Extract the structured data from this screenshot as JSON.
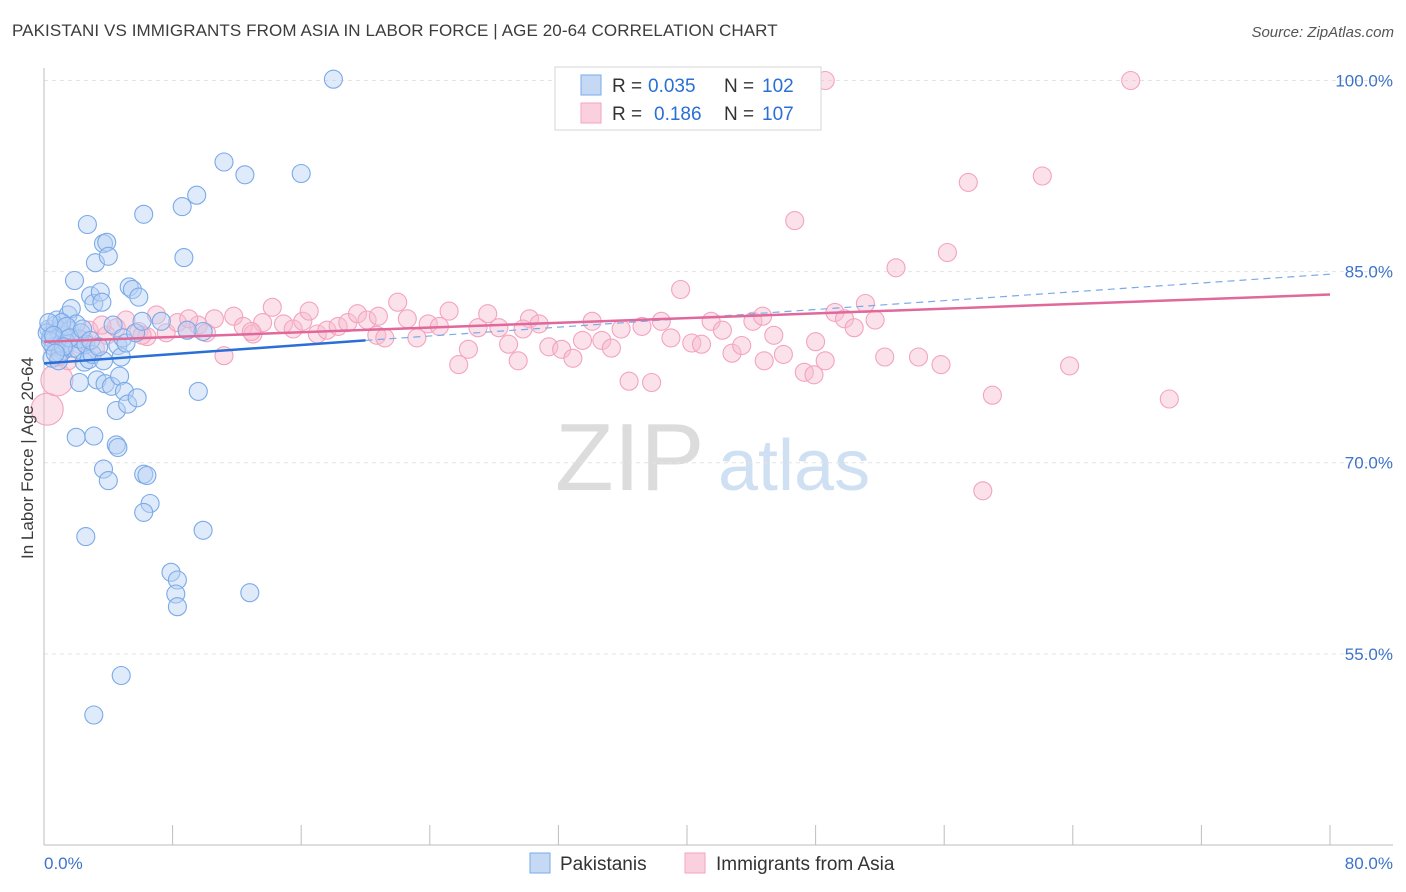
{
  "title": "PAKISTANI VS IMMIGRANTS FROM ASIA IN LABOR FORCE | AGE 20-64 CORRELATION CHART",
  "source": "Source: ZipAtlas.com",
  "watermark": {
    "zip": "ZIP",
    "atlas": "atlas"
  },
  "legend_top": {
    "rows": [
      {
        "r_label": "R =",
        "r_value": "0.035",
        "n_label": "N =",
        "n_value": "102"
      },
      {
        "r_label": "R =",
        "r_value": "0.186",
        "n_label": "N =",
        "n_value": "107"
      }
    ]
  },
  "chart_data": {
    "type": "scatter",
    "ylabel": "In Labor Force | Age 20-64",
    "xlim": [
      0,
      80
    ],
    "ylim": [
      40,
      102
    ],
    "x_tick_labels": [
      "0.0%",
      "80.0%"
    ],
    "y_ticks": [
      55,
      70,
      85,
      100
    ],
    "y_tick_labels": [
      "55.0%",
      "70.0%",
      "85.0%",
      "100.0%"
    ],
    "grid": true,
    "legend_position": "bottom-center",
    "series": [
      {
        "name": "Pakistanis",
        "color": "#7aaae8",
        "line_color": "#2a6fd6",
        "trend": {
          "x0": 0,
          "y0": 77.8,
          "x1": 20,
          "y1": 79.6,
          "dash_x1": 80,
          "dash_y1": 84.8
        },
        "points": [
          [
            0.3,
            80.5
          ],
          [
            0.4,
            79.8
          ],
          [
            0.5,
            80.1
          ],
          [
            0.6,
            79.6
          ],
          [
            0.7,
            80.8
          ],
          [
            0.8,
            79.2
          ],
          [
            0.9,
            80.3
          ],
          [
            1.0,
            79.9
          ],
          [
            1.1,
            80.6
          ],
          [
            1.2,
            78.8
          ],
          [
            0.5,
            78.2
          ],
          [
            0.6,
            79.1
          ],
          [
            0.8,
            81.2
          ],
          [
            1.0,
            78.6
          ],
          [
            1.3,
            80.0
          ],
          [
            1.4,
            79.4
          ],
          [
            1.5,
            81.6
          ],
          [
            1.6,
            80.4
          ],
          [
            1.7,
            82.1
          ],
          [
            1.8,
            79.0
          ],
          [
            2.0,
            80.9
          ],
          [
            2.1,
            78.9
          ],
          [
            2.2,
            79.7
          ],
          [
            2.3,
            80.2
          ],
          [
            2.5,
            77.9
          ],
          [
            2.6,
            79.3
          ],
          [
            2.8,
            78.1
          ],
          [
            3.0,
            78.5
          ],
          [
            0.4,
            79.5
          ],
          [
            0.9,
            78.0
          ],
          [
            1.9,
            84.3
          ],
          [
            2.7,
            88.7
          ],
          [
            2.9,
            83.1
          ],
          [
            3.1,
            82.5
          ],
          [
            3.2,
            85.7
          ],
          [
            3.5,
            83.4
          ],
          [
            3.6,
            82.6
          ],
          [
            3.7,
            87.2
          ],
          [
            3.9,
            87.3
          ],
          [
            4.0,
            86.2
          ],
          [
            4.3,
            80.8
          ],
          [
            4.6,
            79.2
          ],
          [
            4.8,
            78.3
          ],
          [
            4.9,
            79.8
          ],
          [
            5.1,
            79.4
          ],
          [
            5.3,
            83.8
          ],
          [
            5.5,
            83.6
          ],
          [
            5.7,
            80.2
          ],
          [
            5.9,
            83.0
          ],
          [
            6.1,
            81.1
          ],
          [
            3.3,
            76.5
          ],
          [
            3.8,
            76.2
          ],
          [
            4.2,
            76.0
          ],
          [
            4.5,
            74.1
          ],
          [
            4.7,
            76.8
          ],
          [
            5.0,
            75.6
          ],
          [
            5.2,
            74.6
          ],
          [
            5.8,
            75.1
          ],
          [
            2.2,
            76.3
          ],
          [
            3.7,
            78.0
          ],
          [
            2.0,
            72.0
          ],
          [
            3.1,
            72.1
          ],
          [
            3.7,
            69.5
          ],
          [
            4.0,
            68.6
          ],
          [
            4.5,
            71.4
          ],
          [
            4.6,
            71.2
          ],
          [
            6.2,
            69.1
          ],
          [
            6.4,
            69.0
          ],
          [
            6.6,
            66.8
          ],
          [
            6.2,
            66.1
          ],
          [
            2.6,
            64.2
          ],
          [
            7.9,
            61.4
          ],
          [
            8.3,
            60.8
          ],
          [
            8.2,
            59.7
          ],
          [
            8.3,
            58.7
          ],
          [
            9.9,
            64.7
          ],
          [
            12.8,
            59.8
          ],
          [
            3.1,
            50.2
          ],
          [
            4.8,
            53.3
          ],
          [
            6.2,
            89.5
          ],
          [
            8.6,
            90.1
          ],
          [
            8.7,
            86.1
          ],
          [
            9.5,
            91.0
          ],
          [
            11.2,
            93.6
          ],
          [
            12.5,
            92.6
          ],
          [
            16.0,
            92.7
          ],
          [
            18.0,
            100.1
          ],
          [
            9.6,
            75.6
          ],
          [
            7.3,
            81.1
          ],
          [
            9.9,
            80.3
          ],
          [
            8.9,
            80.4
          ],
          [
            1.1,
            81.0
          ],
          [
            1.4,
            80.7
          ],
          [
            0.2,
            80.2
          ],
          [
            0.3,
            81.0
          ],
          [
            0.6,
            80.0
          ],
          [
            1.6,
            79.8
          ],
          [
            2.4,
            80.5
          ],
          [
            2.9,
            79.6
          ],
          [
            3.4,
            79.1
          ],
          [
            1.2,
            79.1
          ],
          [
            0.7,
            78.6
          ]
        ]
      },
      {
        "name": "Immigrants from Asia",
        "color": "#f4a3bf",
        "line_color": "#e0689a",
        "trend": {
          "x0": 0,
          "y0": 79.5,
          "x1": 80,
          "y1": 83.2
        },
        "points": [
          [
            0.2,
            74.2
          ],
          [
            0.8,
            76.5
          ],
          [
            1.5,
            78.0
          ],
          [
            2.2,
            79.3
          ],
          [
            2.8,
            80.4
          ],
          [
            3.2,
            79.0
          ],
          [
            3.9,
            80.0
          ],
          [
            4.5,
            80.6
          ],
          [
            5.1,
            81.2
          ],
          [
            5.9,
            80.3
          ],
          [
            6.4,
            79.9
          ],
          [
            7.0,
            81.6
          ],
          [
            7.6,
            80.2
          ],
          [
            8.3,
            81.0
          ],
          [
            8.9,
            80.4
          ],
          [
            9.6,
            80.8
          ],
          [
            10.1,
            80.2
          ],
          [
            10.6,
            81.3
          ],
          [
            11.2,
            78.4
          ],
          [
            11.8,
            81.5
          ],
          [
            12.4,
            80.7
          ],
          [
            13.0,
            80.1
          ],
          [
            13.6,
            81.0
          ],
          [
            14.2,
            82.2
          ],
          [
            14.9,
            80.9
          ],
          [
            15.5,
            80.5
          ],
          [
            16.1,
            81.1
          ],
          [
            16.5,
            81.9
          ],
          [
            17.0,
            80.1
          ],
          [
            17.6,
            80.4
          ],
          [
            18.3,
            80.7
          ],
          [
            18.9,
            81.0
          ],
          [
            19.5,
            81.7
          ],
          [
            20.1,
            81.2
          ],
          [
            20.7,
            80.0
          ],
          [
            21.2,
            79.8
          ],
          [
            22.0,
            82.6
          ],
          [
            22.6,
            81.3
          ],
          [
            23.2,
            79.8
          ],
          [
            23.9,
            80.9
          ],
          [
            24.6,
            80.7
          ],
          [
            25.2,
            81.9
          ],
          [
            25.8,
            77.7
          ],
          [
            26.4,
            78.9
          ],
          [
            27.0,
            80.6
          ],
          [
            27.6,
            81.7
          ],
          [
            28.3,
            80.6
          ],
          [
            28.9,
            79.3
          ],
          [
            29.5,
            78.0
          ],
          [
            30.2,
            81.3
          ],
          [
            30.8,
            80.9
          ],
          [
            31.4,
            79.1
          ],
          [
            32.2,
            78.9
          ],
          [
            32.9,
            78.2
          ],
          [
            33.5,
            79.6
          ],
          [
            34.1,
            81.1
          ],
          [
            34.7,
            79.6
          ],
          [
            35.3,
            79.0
          ],
          [
            35.9,
            80.5
          ],
          [
            36.4,
            76.4
          ],
          [
            37.2,
            80.7
          ],
          [
            37.8,
            76.3
          ],
          [
            38.4,
            81.1
          ],
          [
            39.0,
            79.8
          ],
          [
            39.6,
            83.6
          ],
          [
            40.3,
            79.4
          ],
          [
            40.9,
            79.3
          ],
          [
            41.5,
            81.1
          ],
          [
            42.2,
            80.4
          ],
          [
            42.8,
            78.6
          ],
          [
            43.4,
            79.2
          ],
          [
            44.1,
            81.1
          ],
          [
            44.8,
            78.0
          ],
          [
            45.4,
            80.0
          ],
          [
            46.0,
            78.5
          ],
          [
            46.7,
            89.0
          ],
          [
            47.3,
            77.1
          ],
          [
            47.9,
            76.9
          ],
          [
            48.6,
            78.0
          ],
          [
            49.2,
            81.8
          ],
          [
            49.8,
            81.3
          ],
          [
            50.4,
            80.6
          ],
          [
            51.1,
            82.5
          ],
          [
            51.7,
            81.2
          ],
          [
            52.3,
            78.3
          ],
          [
            53.0,
            85.3
          ],
          [
            54.4,
            78.3
          ],
          [
            55.8,
            77.7
          ],
          [
            56.2,
            86.5
          ],
          [
            57.5,
            92.0
          ],
          [
            58.4,
            67.8
          ],
          [
            59.0,
            75.3
          ],
          [
            62.1,
            92.5
          ],
          [
            63.8,
            77.6
          ],
          [
            67.6,
            100.0
          ],
          [
            70.0,
            75.0
          ],
          [
            48.0,
            79.5
          ],
          [
            44.7,
            81.5
          ],
          [
            29.8,
            80.5
          ],
          [
            20.8,
            81.5
          ],
          [
            12.9,
            80.3
          ],
          [
            9.0,
            81.3
          ],
          [
            6.1,
            80.0
          ],
          [
            3.6,
            80.8
          ],
          [
            2.5,
            79.6
          ],
          [
            0.9,
            78.3
          ],
          [
            48.6,
            100.0
          ]
        ]
      }
    ]
  }
}
